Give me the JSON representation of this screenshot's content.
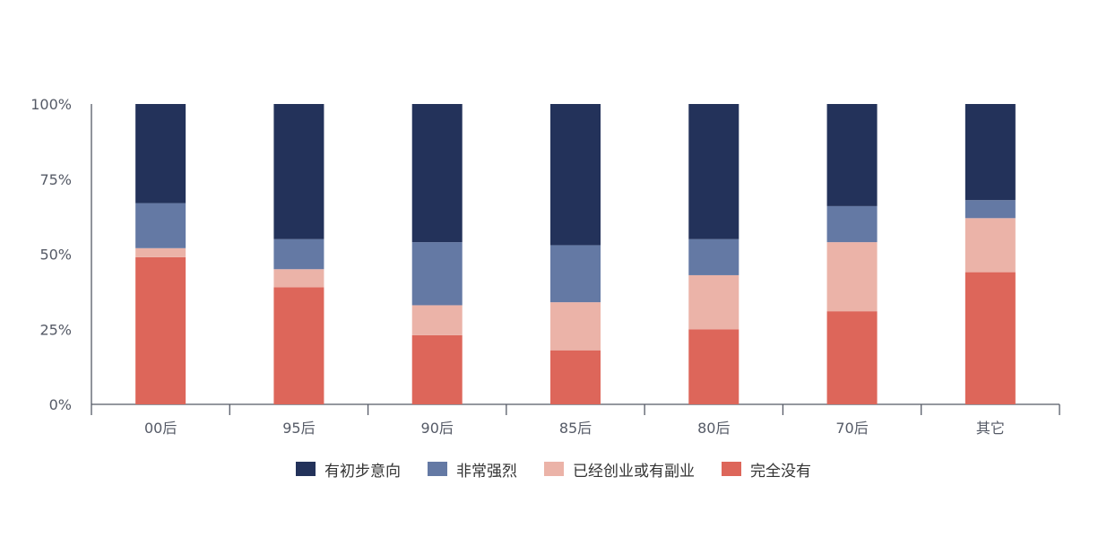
{
  "chart_data": {
    "type": "bar",
    "stacked": true,
    "percent_stacked": true,
    "categories": [
      "00后",
      "95后",
      "90后",
      "85后",
      "80后",
      "70后",
      "其它"
    ],
    "series": [
      {
        "name": "完全没有",
        "color": "#dd665a",
        "values": [
          49,
          39,
          23,
          18,
          25,
          31,
          44
        ]
      },
      {
        "name": "已经创业或有副业",
        "color": "#ebb3a8",
        "values": [
          3,
          6,
          10,
          16,
          18,
          23,
          18
        ]
      },
      {
        "name": "非常强烈",
        "color": "#6479a4",
        "values": [
          15,
          10,
          21,
          19,
          12,
          12,
          6
        ]
      },
      {
        "name": "有初步意向",
        "color": "#23325a",
        "values": [
          33,
          45,
          46,
          47,
          45,
          34,
          32
        ]
      }
    ],
    "y_ticks": [
      "0%",
      "25%",
      "50%",
      "75%",
      "100%"
    ],
    "ylim": [
      0,
      100
    ],
    "legend_order": [
      "有初步意向",
      "非常强烈",
      "已经创业或有副业",
      "完全没有"
    ],
    "legend_position": "bottom",
    "grid": false
  }
}
